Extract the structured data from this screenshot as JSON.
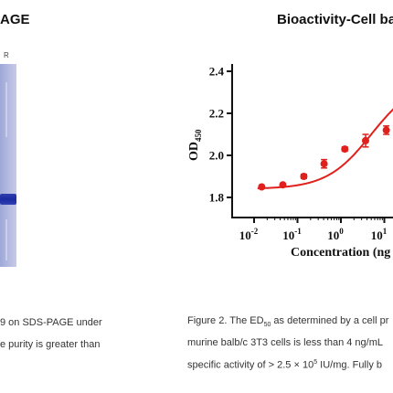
{
  "left_panel": {
    "title": "AGE",
    "lane_label": "R",
    "caption_lines": [
      "9 on SDS-PAGE under",
      "e purity is greater than"
    ]
  },
  "right_panel": {
    "title": "Bioactivity-Cell base",
    "caption_line1_prefix": "Figure 2. The ED",
    "caption_line1_sub": "50",
    "caption_line1_suffix": " as determined by a cell pr",
    "caption_line2": "murine balb/c 3T3 cells is less than 4 ng/mL",
    "caption_line3_prefix": "specific activity of > 2.5 × 10",
    "caption_line3_sup": "5",
    "caption_line3_suffix": " IU/mg. Fully b"
  },
  "chart_data": {
    "type": "line",
    "ylabel": "OD",
    "ylabel_sub": "450",
    "xlabel": "Concentration (ng",
    "x_scale": "log",
    "ylim": [
      1.7,
      2.45
    ],
    "y_ticks": [
      "1.8",
      "2.0",
      "2.2",
      "2.4"
    ],
    "y_tick_values": [
      1.8,
      2.0,
      2.2,
      2.4
    ],
    "x_ticks": [
      {
        "value": 0.01,
        "base": "10",
        "exp": "-2"
      },
      {
        "value": 0.1,
        "base": "10",
        "exp": "-1"
      },
      {
        "value": 1,
        "base": "10",
        "exp": "0"
      },
      {
        "value": 10,
        "base": "10",
        "exp": "1"
      }
    ],
    "series": [
      {
        "color": "#e0201c",
        "x": [
          0.015,
          0.046,
          0.14,
          0.41,
          1.23,
          3.7,
          11.1
        ],
        "y": [
          1.85,
          1.86,
          1.9,
          1.96,
          2.03,
          2.07,
          2.12
        ],
        "err": [
          0.0,
          0.0,
          0.01,
          0.02,
          0.01,
          0.03,
          0.02
        ]
      }
    ],
    "grid": false
  },
  "colors": {
    "accent": "#e0201c",
    "gel_band": "#1a2aa0",
    "gel_background": "#b7bde2"
  }
}
